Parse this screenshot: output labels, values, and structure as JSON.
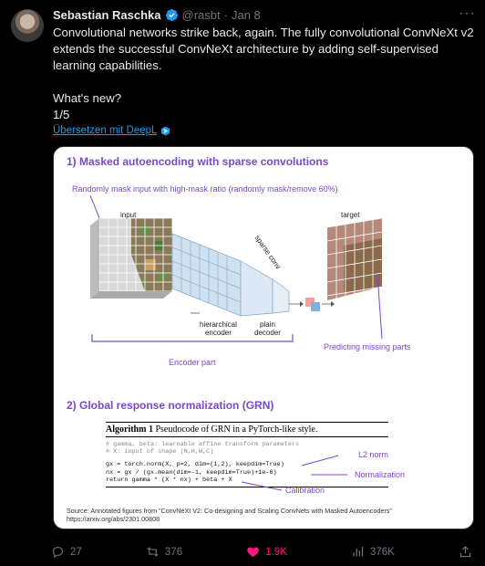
{
  "author": {
    "name": "Sebastian Raschka",
    "handle": "@rasbt",
    "separator": "·",
    "date": "Jan 8"
  },
  "tweet": {
    "paragraph1": "Convolutional networks strike back, again. The fully convolutional ConvNeXt v2 extends the successful ConvNeXt architecture by adding self-supervised learning capabilities.",
    "paragraph2": "What's new?",
    "paragraph3": "1/5"
  },
  "translate_label": "Übersetzen mit DeepL",
  "media": {
    "section1_title": "1) Masked autoencoding with sparse convolutions",
    "mask_annotation": "Randomly mask input with high-mask ratio (randomly mask/remove 60%)",
    "input_label": "input",
    "target_label": "target",
    "sparse_conv_label": "sparse conv",
    "hier_encoder_label": "hierarchical\nencoder",
    "plain_decoder_label": "plain\ndecoder",
    "predicting_label": "Predicting missing parts",
    "encoder_part_label": "Encoder part",
    "section2_title": "2) Global response normalization (GRN)",
    "algo_title_bold": "Algorithm 1",
    "algo_title_rest": " Pseudocode of GRN in a PyTorch-like style.",
    "code_comment1": "# gamma, beta: learnable affine transform parameters",
    "code_comment2": "# X: input of shape (N,H,W,C)",
    "code_line1": "gx = torch.norm(X, p=2, dim=(1,2), keepdim=True)",
    "code_line2": "nx = gx / (gx.mean(dim=-1, keepdim=True)+1e-6)",
    "code_line3": "return gamma * (X * nx) + beta + X",
    "l2_label": "L2 norm",
    "normalization_label": "Normalization",
    "calibration_label": "Calibration",
    "source_text": "Source: Annotated figures from “ConvNeXt V2: Co-designing and Scaling ConvNets with Masked Autoencoders”\nhttps://arxiv.org/abs/2301.00808",
    "accent_color": "#7a48c8"
  },
  "actions": {
    "replies": "27",
    "retweets": "376",
    "likes": "1.9K",
    "views": "376K"
  },
  "colors": {
    "background": "#000000",
    "text": "#e7e9ea",
    "muted": "#71767b",
    "link": "#1d9bf0",
    "like": "#f91880"
  }
}
